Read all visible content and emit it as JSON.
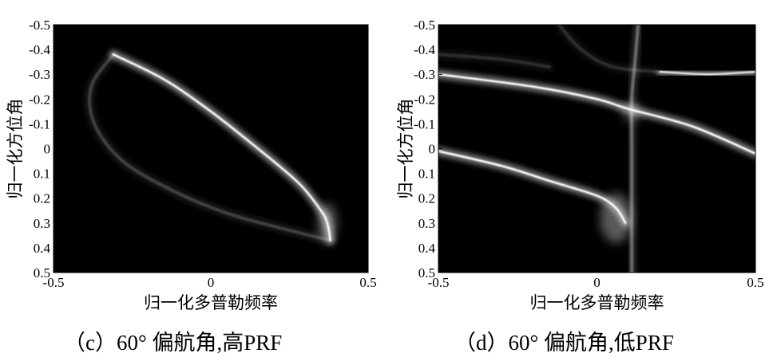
{
  "chart_data": [
    {
      "type": "heatmap",
      "panel": "c",
      "caption": "（c）60° 偏航角,高PRF",
      "xlabel": "归一化多普勒频率",
      "ylabel": "归一化方位角",
      "xlim": [
        -0.5,
        0.5
      ],
      "ylim": [
        -0.5,
        0.5
      ],
      "y_inverted": true,
      "x_ticks": [
        "-0.5",
        "0",
        "0.5"
      ],
      "x_tick_values": [
        -0.5,
        0,
        0.5
      ],
      "y_ticks": [
        "-0.5",
        "-0.4",
        "-0.3",
        "-0.2",
        "-0.1",
        "0",
        "0.1",
        "0.2",
        "0.3",
        "0.4",
        "0.5"
      ],
      "y_tick_values": [
        -0.5,
        -0.4,
        -0.3,
        -0.2,
        -0.1,
        0,
        0.1,
        0.2,
        0.3,
        0.4,
        0.5
      ],
      "colormap": "gray",
      "background": "#000000",
      "curves": [
        {
          "intensity": 1.0,
          "points": [
            [
              -0.31,
              -0.38
            ],
            [
              -0.15,
              -0.28
            ],
            [
              0.0,
              -0.15
            ],
            [
              0.15,
              0.0
            ],
            [
              0.28,
              0.14
            ],
            [
              0.35,
              0.25
            ],
            [
              0.37,
              0.3
            ],
            [
              0.38,
              0.37
            ]
          ]
        },
        {
          "intensity": 0.22,
          "points": [
            [
              -0.31,
              -0.38
            ],
            [
              -0.38,
              -0.25
            ],
            [
              -0.37,
              -0.1
            ],
            [
              -0.28,
              0.05
            ],
            [
              -0.12,
              0.17
            ],
            [
              0.05,
              0.26
            ],
            [
              0.22,
              0.32
            ],
            [
              0.38,
              0.37
            ]
          ]
        }
      ],
      "blobs": [
        {
          "x": 0.37,
          "y": 0.3,
          "sx": 0.03,
          "sy": 0.08,
          "intensity": 0.35
        }
      ]
    },
    {
      "type": "heatmap",
      "panel": "d",
      "caption": "（d）60° 偏航角,低PRF",
      "xlabel": "归一化多普勒频率",
      "ylabel": "归一化方位角",
      "xlim": [
        -0.5,
        0.5
      ],
      "ylim": [
        -0.5,
        0.5
      ],
      "y_inverted": true,
      "x_ticks": [
        "-0.5",
        "0",
        "0.5"
      ],
      "x_tick_values": [
        -0.5,
        0,
        0.5
      ],
      "y_ticks": [
        "-0.5",
        "-0.4",
        "-0.3",
        "-0.2",
        "-0.1",
        "0",
        "0.1",
        "0.2",
        "0.3",
        "0.4",
        "0.5"
      ],
      "y_tick_values": [
        -0.5,
        -0.4,
        -0.3,
        -0.2,
        -0.1,
        0,
        0.1,
        0.2,
        0.3,
        0.4,
        0.5
      ],
      "colormap": "gray",
      "background": "#000000",
      "curves": [
        {
          "intensity": 1.0,
          "points": [
            [
              -0.5,
              -0.3
            ],
            [
              -0.2,
              -0.25
            ],
            [
              0.0,
              -0.2
            ],
            [
              0.1,
              -0.16
            ],
            [
              0.3,
              -0.09
            ],
            [
              0.5,
              0.02
            ]
          ]
        },
        {
          "intensity": 1.0,
          "points": [
            [
              -0.5,
              0.01
            ],
            [
              -0.3,
              0.07
            ],
            [
              -0.15,
              0.13
            ],
            [
              0.0,
              0.19
            ],
            [
              0.06,
              0.24
            ],
            [
              0.09,
              0.3
            ]
          ]
        },
        {
          "intensity": 0.85,
          "points": [
            [
              0.2,
              -0.31
            ],
            [
              0.35,
              -0.3
            ],
            [
              0.5,
              -0.31
            ]
          ]
        },
        {
          "intensity": 0.38,
          "points": [
            [
              0.13,
              -0.5
            ],
            [
              0.12,
              -0.35
            ],
            [
              0.11,
              -0.2
            ],
            [
              0.11,
              0.0
            ],
            [
              0.11,
              0.2
            ],
            [
              0.11,
              0.5
            ]
          ]
        },
        {
          "intensity": 0.15,
          "points": [
            [
              -0.12,
              -0.5
            ],
            [
              -0.05,
              -0.4
            ],
            [
              0.05,
              -0.33
            ],
            [
              0.2,
              -0.31
            ]
          ]
        },
        {
          "intensity": 0.15,
          "points": [
            [
              -0.5,
              -0.38
            ],
            [
              -0.3,
              -0.36
            ],
            [
              -0.15,
              -0.33
            ]
          ]
        }
      ],
      "blobs": [
        {
          "x": 0.06,
          "y": 0.28,
          "sx": 0.05,
          "sy": 0.1,
          "intensity": 0.35
        },
        {
          "x": 0.11,
          "y": -0.15,
          "sx": 0.03,
          "sy": 0.04,
          "intensity": 0.3
        }
      ]
    }
  ]
}
